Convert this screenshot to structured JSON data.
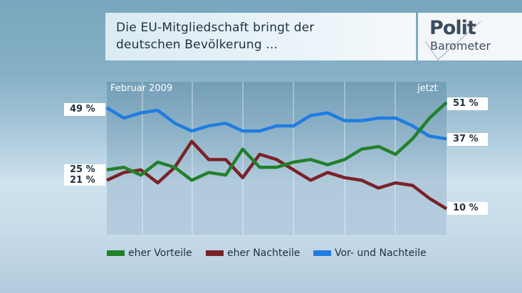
{
  "title": {
    "line1": "Die EU-Mitgliedschaft bringt der",
    "line2": "deutschen Bevölkerung ..."
  },
  "logo": {
    "word1": "Polit",
    "word2": "Barometer"
  },
  "chart_data": {
    "type": "line",
    "title": "Die EU-Mitgliedschaft bringt der deutschen Bevölkerung ...",
    "x_start_label": "Februar 2009",
    "x_end_label": "jetzt",
    "ylim": [
      0,
      59
    ],
    "grid": "vertical",
    "legend_position": "bottom",
    "series": [
      {
        "name": "eher Vorteile",
        "color": "#22802a",
        "values": [
          25,
          26,
          23,
          28,
          26,
          21,
          24,
          23,
          33,
          26,
          26,
          28,
          29,
          27,
          29,
          33,
          34,
          31,
          37,
          45,
          51
        ],
        "start_label": "25 %",
        "end_label": "51 %"
      },
      {
        "name": "eher Nachteile",
        "color": "#7a2228",
        "values": [
          21,
          24,
          25,
          20,
          26,
          36,
          29,
          29,
          22,
          31,
          29,
          25,
          21,
          24,
          22,
          21,
          18,
          20,
          19,
          14,
          10
        ],
        "start_label": "21 %",
        "end_label": "10 %"
      },
      {
        "name": "Vor- und Nachteile",
        "color": "#1f7de0",
        "values": [
          49,
          45,
          47,
          48,
          43,
          40,
          42,
          43,
          40,
          40,
          42,
          42,
          46,
          47,
          44,
          44,
          45,
          45,
          42,
          38,
          37
        ],
        "start_label": "49 %",
        "end_label": "37 %"
      }
    ]
  }
}
